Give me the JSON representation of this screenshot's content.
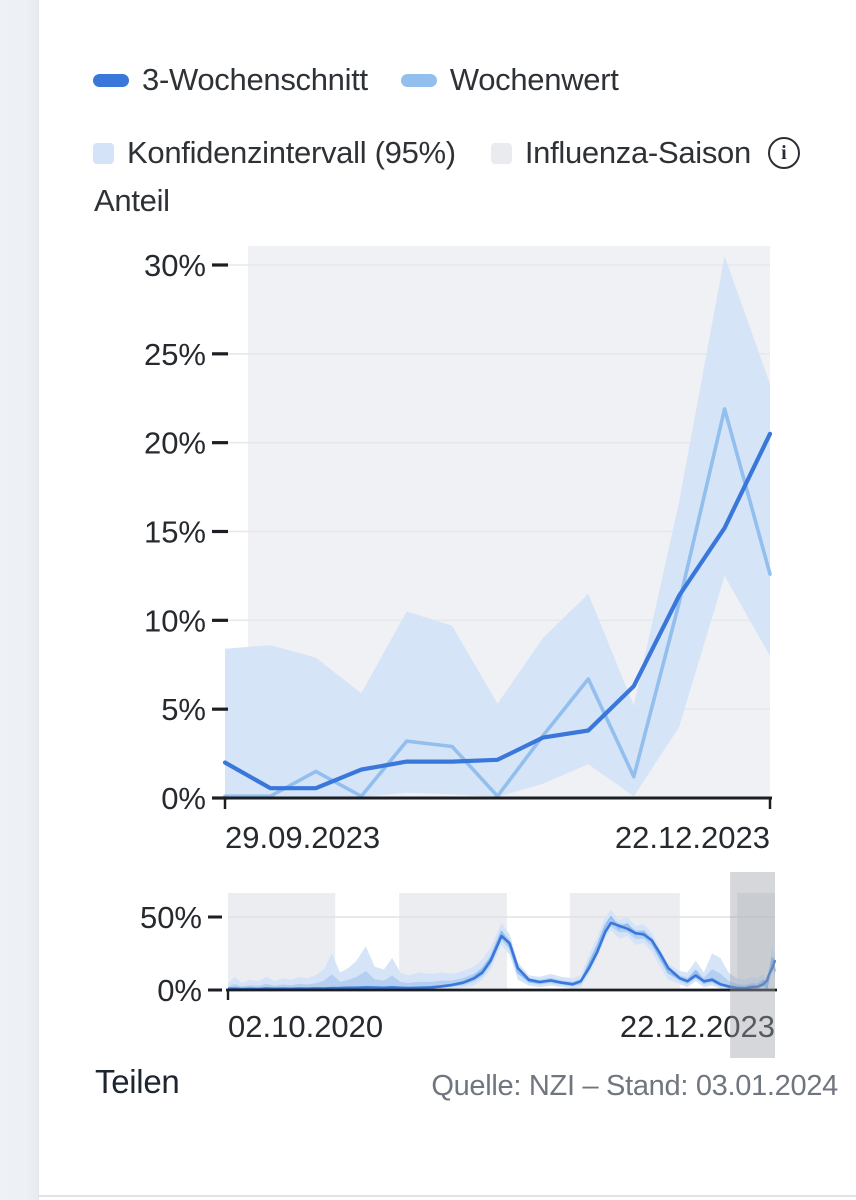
{
  "legend": {
    "items": [
      {
        "label": "3-Wochenschnitt",
        "type": "line",
        "color": "#3A77DA"
      },
      {
        "label": "Wochenwert",
        "type": "line",
        "color": "#92BFEE"
      },
      {
        "label": "Konfidenzintervall (95%)",
        "type": "area",
        "color": "#D4E3F8"
      },
      {
        "label": "Influenza-Saison",
        "type": "area",
        "color": "#E9EBEE"
      }
    ],
    "info_icon_glyph": "i"
  },
  "y_axis_title": "Anteil",
  "footer": {
    "share_label": "Teilen",
    "source_text": "Quelle: NZI – Stand: 03.01.2024"
  },
  "colors": {
    "accent": "#3A77DA",
    "light": "#92BFEE",
    "band": "#D4E3F8",
    "band_inner": "#AECBF1",
    "season_main": "#F0F1F4",
    "season_mini": "#EBEDF0",
    "grid": "#E7E8EB",
    "grid_mini": "#DFE2E6",
    "axis": "#1B1E23",
    "text": "#26292E",
    "brush": "#9AA0A8"
  },
  "chart_data": [
    {
      "type": "line",
      "name": "main",
      "y_axis_title": "Anteil",
      "x_tick_labels": [
        "29.09.2023",
        "22.12.2023"
      ],
      "y_ticks": [
        {
          "label": "0%",
          "value": 0
        },
        {
          "label": "5%",
          "value": 5
        },
        {
          "label": "10%",
          "value": 10
        },
        {
          "label": "15%",
          "value": 15
        },
        {
          "label": "20%",
          "value": 20
        },
        {
          "label": "25%",
          "value": 25
        },
        {
          "label": "30%",
          "value": 30
        }
      ],
      "ylim": [
        0,
        31
      ],
      "n_weeks": 13,
      "season_start_frac": 0.042,
      "series": [
        {
          "name": "3-Wochenschnitt",
          "values": [
            2.0,
            0.55,
            0.55,
            1.6,
            2.05,
            2.05,
            2.15,
            3.4,
            3.8,
            6.3,
            11.4,
            15.2,
            20.5
          ]
        },
        {
          "name": "Wochenwert",
          "values": [
            0.1,
            0.1,
            1.5,
            0.1,
            3.2,
            2.9,
            0.1,
            3.5,
            6.7,
            1.2,
            11.0,
            21.9,
            12.6
          ]
        }
      ],
      "band": {
        "name": "Konfidenzintervall (95%)",
        "upper": [
          8.4,
          8.6,
          7.9,
          5.9,
          10.5,
          9.7,
          5.3,
          9.0,
          11.5,
          5.2,
          16.7,
          30.5,
          23.3
        ],
        "lower": [
          0.05,
          0.05,
          0.05,
          0.05,
          0.3,
          0.2,
          0.05,
          0.8,
          1.9,
          0.1,
          4.0,
          12.5,
          8.0
        ]
      }
    },
    {
      "type": "line",
      "name": "overview",
      "x_tick_labels": [
        "02.10.2020",
        "22.12.2023"
      ],
      "y_ticks": [
        {
          "label": "0%",
          "value": 0
        },
        {
          "label": "50%",
          "value": 50
        }
      ],
      "ylim": [
        0,
        66
      ],
      "season_regions_frac": [
        [
          0.0,
          0.196
        ],
        [
          0.313,
          0.51
        ],
        [
          0.625,
          0.826
        ],
        [
          0.931,
          1.0
        ]
      ],
      "brush_frac": [
        0.918,
        1.0
      ],
      "points": [
        [
          0.0,
          0.5,
          0.8,
          4.5,
          0
        ],
        [
          0.012,
          1.2,
          0.9,
          9,
          0
        ],
        [
          0.025,
          0.4,
          0.7,
          5,
          0
        ],
        [
          0.04,
          0.8,
          0.8,
          7,
          0
        ],
        [
          0.055,
          0.5,
          0.7,
          6,
          0
        ],
        [
          0.07,
          1.4,
          1.0,
          9,
          0
        ],
        [
          0.085,
          0.6,
          0.8,
          6,
          0
        ],
        [
          0.1,
          0.9,
          0.9,
          8,
          0
        ],
        [
          0.115,
          0.6,
          0.8,
          7,
          0
        ],
        [
          0.13,
          1.1,
          1.0,
          9,
          0
        ],
        [
          0.145,
          0.8,
          0.9,
          8,
          0
        ],
        [
          0.16,
          1.3,
          1.1,
          10,
          0
        ],
        [
          0.175,
          1.0,
          1.0,
          14,
          0
        ],
        [
          0.19,
          1.5,
          1.2,
          25,
          0
        ],
        [
          0.205,
          1.2,
          1.3,
          12,
          0
        ],
        [
          0.22,
          1.6,
          1.5,
          15,
          0
        ],
        [
          0.235,
          1.4,
          1.5,
          20,
          0
        ],
        [
          0.252,
          2.0,
          1.8,
          30,
          0
        ],
        [
          0.268,
          1.6,
          1.7,
          16,
          0
        ],
        [
          0.285,
          1.3,
          1.5,
          14,
          0
        ],
        [
          0.3,
          2.1,
          1.8,
          22,
          0
        ],
        [
          0.315,
          1.4,
          1.5,
          12,
          0
        ],
        [
          0.33,
          1.1,
          1.3,
          10,
          0
        ],
        [
          0.35,
          1.5,
          1.5,
          12,
          0.2
        ],
        [
          0.37,
          1.9,
          1.8,
          11,
          0.3
        ],
        [
          0.39,
          2.8,
          2.5,
          12,
          0.5
        ],
        [
          0.41,
          3.8,
          3.5,
          11,
          1
        ],
        [
          0.43,
          5.5,
          5,
          13,
          1.5
        ],
        [
          0.45,
          9,
          8,
          16,
          3
        ],
        [
          0.465,
          14,
          12,
          21,
          7
        ],
        [
          0.48,
          22,
          20,
          29,
          14
        ],
        [
          0.5,
          40,
          37,
          46,
          31
        ],
        [
          0.515,
          30,
          32,
          38,
          24
        ],
        [
          0.53,
          12,
          15,
          19,
          7
        ],
        [
          0.55,
          6,
          7,
          10,
          3
        ],
        [
          0.57,
          5,
          5.5,
          9,
          2
        ],
        [
          0.59,
          7,
          6.5,
          11,
          3
        ],
        [
          0.61,
          5,
          5,
          9,
          2
        ],
        [
          0.63,
          3.5,
          4,
          8,
          1
        ],
        [
          0.645,
          5.5,
          6,
          10,
          2
        ],
        [
          0.66,
          18,
          15,
          24,
          11
        ],
        [
          0.675,
          30,
          26,
          36,
          22
        ],
        [
          0.69,
          44,
          40,
          50,
          36
        ],
        [
          0.7,
          50,
          46,
          55,
          41
        ],
        [
          0.715,
          42,
          44,
          48,
          35
        ],
        [
          0.73,
          45,
          42,
          50,
          37
        ],
        [
          0.745,
          38,
          39,
          44,
          31
        ],
        [
          0.76,
          40,
          38,
          45,
          32
        ],
        [
          0.775,
          33,
          34,
          39,
          26
        ],
        [
          0.79,
          22,
          25,
          28,
          16
        ],
        [
          0.805,
          12,
          15,
          18,
          7
        ],
        [
          0.826,
          8,
          8,
          13,
          4
        ],
        [
          0.84,
          6,
          6,
          12,
          2
        ],
        [
          0.855,
          13,
          10,
          20,
          6
        ],
        [
          0.87,
          5,
          6,
          12,
          2
        ],
        [
          0.885,
          8,
          7,
          25,
          3
        ],
        [
          0.9,
          4,
          4,
          22,
          1
        ],
        [
          0.915,
          2,
          2.5,
          12,
          0.3
        ],
        [
          0.93,
          1,
          1.5,
          8,
          0.1
        ],
        [
          0.945,
          1.5,
          1.2,
          7,
          0.1
        ],
        [
          0.957,
          3,
          2,
          9,
          0.3
        ],
        [
          0.968,
          2.5,
          2.2,
          8,
          0.3
        ],
        [
          0.978,
          6.5,
          3.8,
          11,
          1
        ],
        [
          0.985,
          1.2,
          6.3,
          8,
          0.1
        ],
        [
          0.99,
          11,
          11.4,
          17,
          5.5
        ],
        [
          0.995,
          21.9,
          15.2,
          30.5,
          12.5
        ],
        [
          1.0,
          12.6,
          20.5,
          23.5,
          8
        ]
      ]
    }
  ]
}
